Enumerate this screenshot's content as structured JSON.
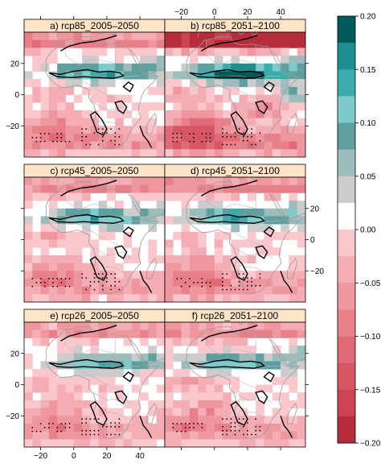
{
  "chart_data": {
    "type": "heatmap",
    "panels": [
      {
        "id": "a",
        "title": "a) rcp85_2005–2050",
        "scenario": "rcp85",
        "period": "2005–2050"
      },
      {
        "id": "b",
        "title": "b) rcp85_2051–2100",
        "scenario": "rcp85",
        "period": "2051–2100"
      },
      {
        "id": "c",
        "title": "c) rcp45_2005–2050",
        "scenario": "rcp45",
        "period": "2005–2050"
      },
      {
        "id": "d",
        "title": "d) rcp45_2051–2100",
        "scenario": "rcp45",
        "period": "2051–2100"
      },
      {
        "id": "e",
        "title": "e) rcp26_2005–2050",
        "scenario": "rcp26",
        "period": "2005–2050"
      },
      {
        "id": "f",
        "title": "f) rcp26_2051–2100",
        "scenario": "rcp26",
        "period": "2051–2100"
      }
    ],
    "x_ticks": [
      -20,
      0,
      20,
      40
    ],
    "y_ticks": [
      20,
      0,
      -20
    ],
    "xlim": [
      -30,
      55
    ],
    "ylim": [
      -40,
      40
    ],
    "x_tick_labels": [
      "−20",
      "0",
      "20",
      "40"
    ],
    "y_tick_labels": [
      "20",
      "0",
      "−20"
    ],
    "colorbar": {
      "ticks": [
        0.2,
        0.15,
        0.1,
        0.05,
        0.0,
        -0.05,
        -0.1,
        -0.15,
        -0.2
      ],
      "labels": [
        "0.20",
        "0.15",
        "0.10",
        "0.05",
        "0.00",
        "−0.05",
        "−0.10",
        "−0.15",
        "−0.20"
      ],
      "range": [
        -0.2,
        0.2
      ],
      "colors": [
        "#005a59",
        "#1e8f8f",
        "#3aacac",
        "#7fcaca",
        "#5e9fa0",
        "#9dbdbd",
        "#cccccc",
        "#ffffff",
        "#f9c7cc",
        "#f4adb4",
        "#ef979f",
        "#e8808a",
        "#e06b76",
        "#d65763",
        "#cc4452",
        "#b62d3c"
      ]
    },
    "grid": false,
    "legend": "right"
  }
}
